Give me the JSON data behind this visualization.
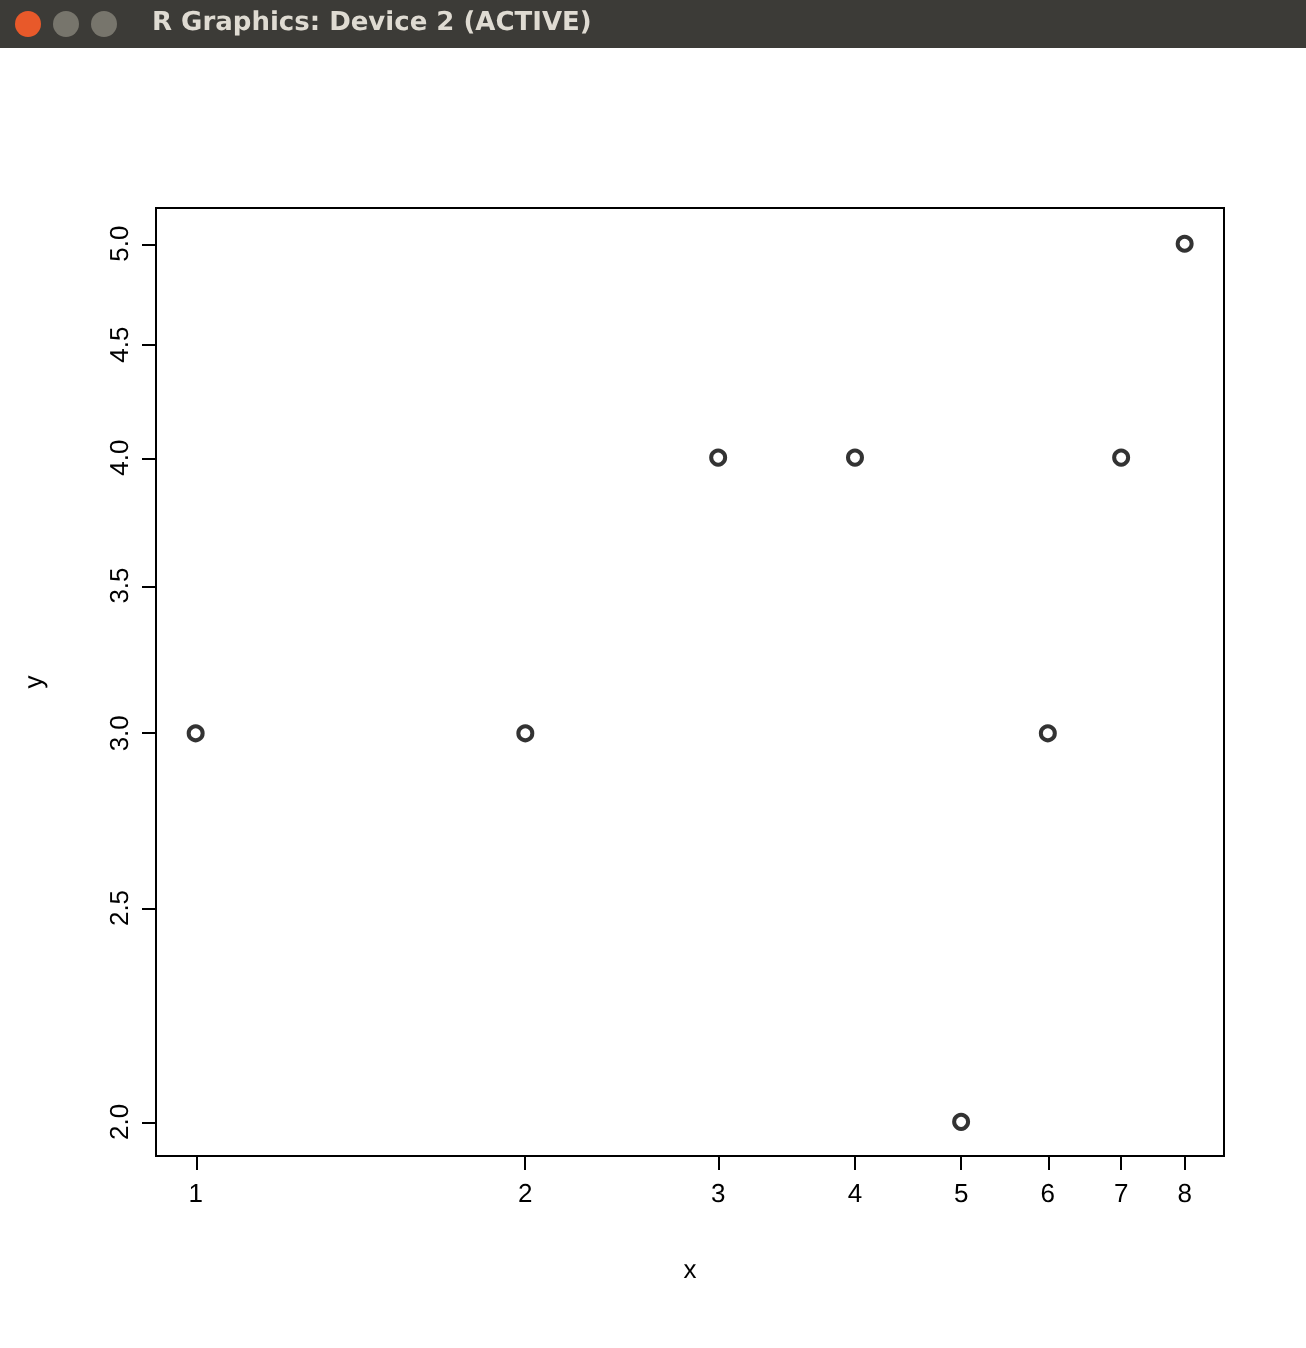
{
  "chart_data": {
    "type": "scatter",
    "xlabel": "x",
    "ylabel": "y",
    "log": "xy",
    "marker": "circle",
    "annotations": [
      "R Graphics: Device 2 (ACTIVE)"
    ],
    "x": [
      1,
      2,
      3,
      4,
      5,
      6,
      7,
      8
    ],
    "series": [
      {
        "color": "#000000",
        "values": [
          3,
          3,
          4,
          4,
          2,
          3,
          4,
          5
        ]
      }
    ],
    "xlim": [
      0.92,
      8.69
    ],
    "xticks": [
      1,
      2,
      3,
      4,
      5,
      6,
      7,
      8
    ],
    "ylim": [
      1.93,
      5.19
    ],
    "yticks": [
      {
        "value": 2,
        "label": "2.0"
      },
      {
        "value": 2.5,
        "label": "2.5"
      },
      {
        "value": 3,
        "label": "3.0"
      },
      {
        "value": 3.5,
        "label": "3.5"
      },
      {
        "value": 4,
        "label": "4.0"
      },
      {
        "value": 4.5,
        "label": "4.5"
      },
      {
        "value": 5,
        "label": "5.0"
      }
    ]
  }
}
